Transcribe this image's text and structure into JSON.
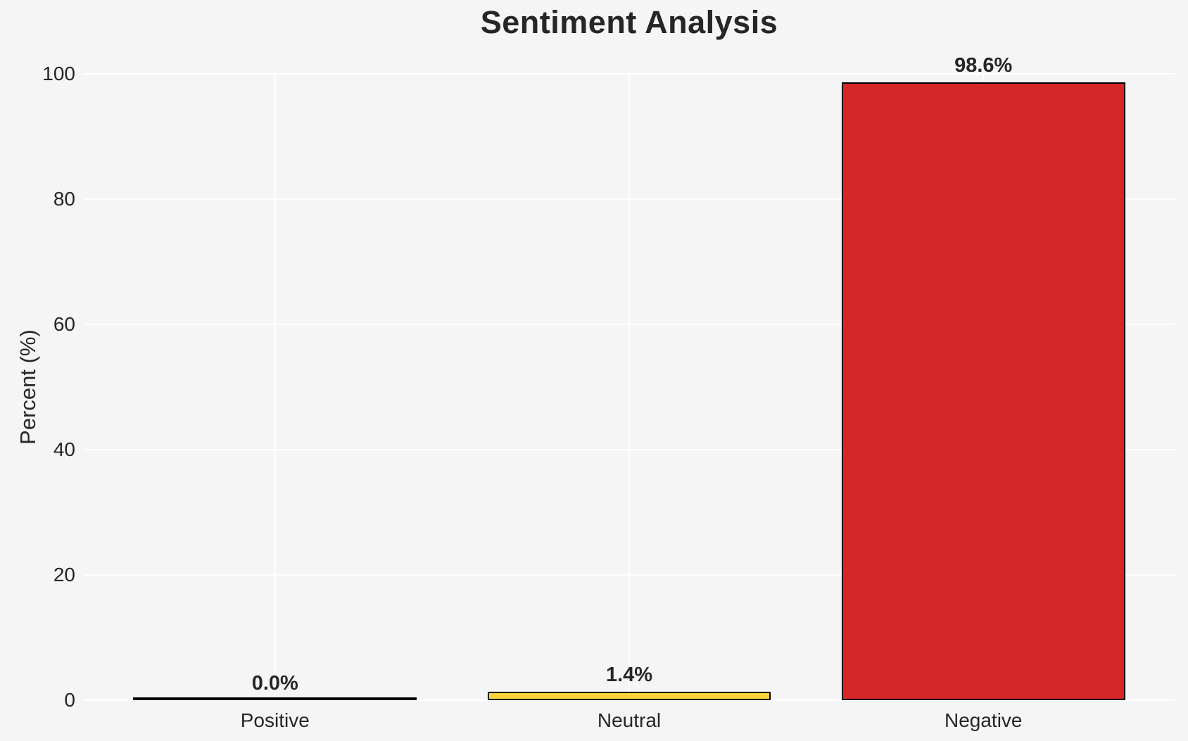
{
  "page": {
    "background_color": "#f5f5f6",
    "text_color": "#262626",
    "grid_color": "#ffffff"
  },
  "chart_data": {
    "type": "bar",
    "title": "Sentiment Analysis",
    "xlabel": "",
    "ylabel": "Percent (%)",
    "categories": [
      "Positive",
      "Neutral",
      "Negative"
    ],
    "values": [
      0.0,
      1.4,
      98.6
    ],
    "value_labels": [
      "0.0%",
      "1.4%",
      "98.6%"
    ],
    "bar_colors": [
      "none",
      "#F8D53A",
      "#D62728"
    ],
    "bar_edge_color": "#000000",
    "ylim": [
      0,
      100
    ],
    "yticks": [
      0,
      20,
      40,
      60,
      80,
      100
    ],
    "xlim": [
      -0.54,
      2.54
    ],
    "bar_width": 0.8,
    "grid": true,
    "grid_orientation": "horizontal-and-vertical",
    "legend_position": "none"
  }
}
